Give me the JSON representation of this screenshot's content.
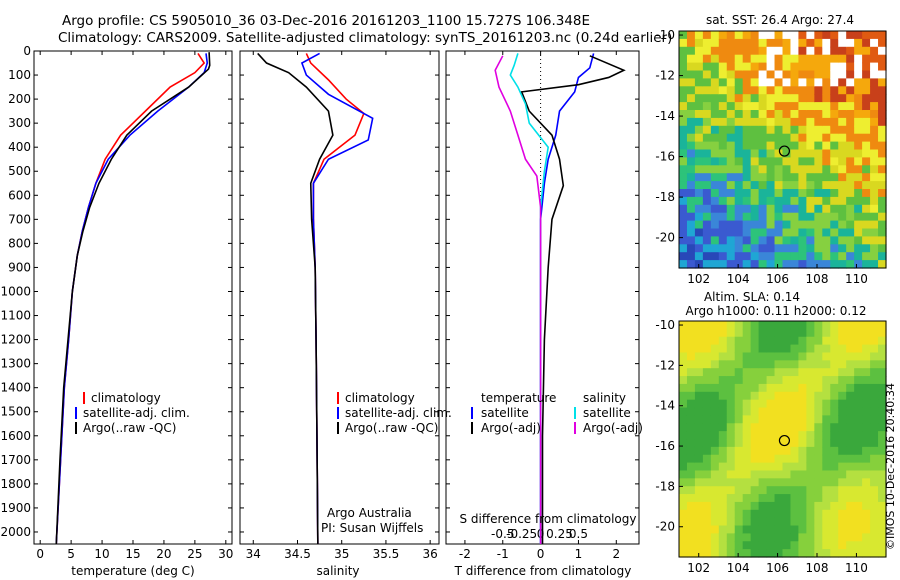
{
  "header": {
    "line1": "Argo profile: CS 5905010_36 03-Dec-2016 20161203_1100 15.727S 106.348E",
    "line2": "Climatology: CARS2009. Satellite-adjusted climatology: synTS_20161203.nc (0.24d earlier)"
  },
  "footer": {
    "credit": "©IMOS 10-Dec-2016 20:40:34"
  },
  "colors": {
    "climatology": "#ff0000",
    "satellite_adj": "#0000ff",
    "argo": "#000000",
    "salinity_satellite": "#00e0e8",
    "salinity_argo": "#e000e0"
  },
  "chart_data": [
    {
      "type": "line",
      "panel": "temperature",
      "xlabel": "temperature (deg C)",
      "ylabel": "",
      "xlim": [
        -1,
        31
      ],
      "ylim": [
        2050,
        0
      ],
      "xticks": [
        0,
        5,
        10,
        15,
        20,
        25,
        30
      ],
      "yticks": [
        0,
        100,
        200,
        300,
        400,
        500,
        600,
        700,
        800,
        900,
        1000,
        1100,
        1200,
        1300,
        1400,
        1500,
        1600,
        1700,
        1800,
        1900,
        2000
      ],
      "legend": [
        "climatology",
        "satellite-adj. clim.",
        "Argo(..raw -QC)"
      ],
      "series": [
        {
          "name": "climatology",
          "x": [
            25.5,
            26.5,
            25,
            21,
            17,
            13,
            10.5,
            9,
            7.8,
            6.8,
            6,
            5.2,
            4.6,
            3.9,
            3.3,
            2.6
          ],
          "y": [
            10,
            50,
            90,
            150,
            250,
            350,
            450,
            550,
            650,
            750,
            850,
            1000,
            1200,
            1400,
            1700,
            2050
          ]
        },
        {
          "name": "satellite-adj. clim.",
          "x": [
            26.8,
            27,
            26.5,
            24,
            19,
            14.5,
            11,
            9,
            7.8,
            6.8,
            6,
            5.2,
            4.6,
            3.9,
            3.3,
            2.6
          ],
          "y": [
            10,
            50,
            90,
            150,
            250,
            350,
            450,
            550,
            650,
            750,
            850,
            1000,
            1200,
            1400,
            1700,
            2050
          ]
        },
        {
          "name": "Argo(..raw -QC)",
          "x": [
            27.3,
            27.4,
            27.2,
            24,
            18,
            14,
            11.5,
            9.5,
            8,
            6.9,
            6,
            5.2,
            4.5,
            3.8,
            3.2,
            2.6
          ],
          "y": [
            5,
            60,
            75,
            150,
            250,
            350,
            450,
            550,
            650,
            750,
            850,
            1000,
            1200,
            1400,
            1700,
            2050
          ]
        }
      ]
    },
    {
      "type": "line",
      "panel": "salinity",
      "xlabel": "salinity",
      "xlim": [
        33.85,
        36.1
      ],
      "ylim": [
        2050,
        0
      ],
      "xticks": [
        34,
        34.5,
        35,
        35.5,
        36
      ],
      "legend": [
        "climatology",
        "satellite-adj. clim.",
        "Argo(..raw -QC)"
      ],
      "annotations": [
        "Argo Australia",
        "PI: Susan Wijffels"
      ],
      "series": [
        {
          "name": "climatology",
          "x": [
            34.6,
            34.65,
            34.85,
            35.05,
            35.25,
            35.15,
            34.8,
            34.68,
            34.68,
            34.7,
            34.71,
            34.72,
            34.73
          ],
          "y": [
            10,
            50,
            120,
            200,
            260,
            350,
            450,
            550,
            700,
            900,
            1200,
            1600,
            2050
          ]
        },
        {
          "name": "satellite-adj. clim.",
          "x": [
            34.75,
            34.55,
            34.6,
            34.85,
            35.35,
            35.3,
            34.85,
            34.68,
            34.68,
            34.7,
            34.71,
            34.72,
            34.73
          ],
          "y": [
            10,
            50,
            100,
            180,
            280,
            370,
            450,
            550,
            700,
            900,
            1200,
            1600,
            2050
          ]
        },
        {
          "name": "Argo(..raw -QC)",
          "x": [
            34.05,
            34.15,
            34.4,
            34.6,
            34.85,
            34.9,
            34.75,
            34.65,
            34.66,
            34.7,
            34.71,
            34.72,
            34.73
          ],
          "y": [
            10,
            50,
            90,
            150,
            250,
            350,
            450,
            550,
            700,
            900,
            1200,
            1600,
            2050
          ]
        }
      ]
    },
    {
      "type": "line",
      "panel": "differences",
      "xlabel": "T difference from climatology",
      "xlabel_top": "S difference from climatology",
      "xlim": [
        -2.5,
        2.6
      ],
      "ylim": [
        2050,
        0
      ],
      "xticks_T": [
        -2,
        -1,
        0,
        1,
        2
      ],
      "xticks_S": [
        "-0.5",
        "-0.25",
        "0",
        "0.25",
        "0.5"
      ],
      "legend_titles": [
        "temperature",
        "salinity"
      ],
      "legend": [
        "satellite",
        "Argo(-adj)",
        "satellite",
        "Argo(-adj)"
      ],
      "series": [
        {
          "name": "satellite",
          "x": [
            1.4,
            1.3,
            1.0,
            0.9,
            0.5,
            0.4,
            0.2,
            0.1,
            0.0,
            0.0,
            0.0
          ],
          "y": [
            10,
            70,
            110,
            170,
            250,
            350,
            450,
            550,
            700,
            1200,
            2050
          ]
        },
        {
          "name": "Argo(-adj)",
          "x": [
            1.3,
            2.2,
            1.8,
            1.0,
            -0.5,
            -0.3,
            0.3,
            0.5,
            0.6,
            0.3,
            0.2,
            0.1,
            0.05,
            0.05
          ],
          "y": [
            20,
            80,
            110,
            140,
            170,
            250,
            350,
            450,
            560,
            700,
            900,
            1200,
            1600,
            2050
          ]
        },
        {
          "name": "satellite",
          "x": [
            -0.6,
            -0.7,
            -0.8,
            -0.6,
            -0.4,
            -0.3,
            0.2,
            0.1,
            0.0,
            0.0,
            0.0
          ],
          "y": [
            10,
            60,
            100,
            150,
            220,
            300,
            400,
            500,
            650,
            1200,
            2050
          ]
        },
        {
          "name": "Argo(-adj)",
          "x": [
            -1.0,
            -1.2,
            -1.1,
            -0.8,
            -0.6,
            -0.4,
            -0.1,
            0.0,
            0.0
          ],
          "y": [
            20,
            80,
            150,
            250,
            350,
            450,
            520,
            650,
            2050
          ]
        }
      ]
    },
    {
      "type": "heatmap",
      "panel": "sst-map",
      "title": "sat. SST: 26.4 Argo: 27.4",
      "xticks": [
        102,
        104,
        106,
        108,
        110
      ],
      "yticks": [
        -10,
        -12,
        -14,
        -16,
        -18,
        -20
      ],
      "xlim": [
        101,
        111.5
      ],
      "ylim": [
        -21.5,
        -9.8
      ],
      "marker": {
        "lon": 106.348,
        "lat": -15.727
      }
    },
    {
      "type": "heatmap",
      "panel": "sla-map",
      "title": "Altim. SLA: 0.14",
      "subtitle": "Argo h1000: 0.11 h2000: 0.12",
      "xticks": [
        102,
        104,
        106,
        108,
        110
      ],
      "yticks": [
        -10,
        -12,
        -14,
        -16,
        -18,
        -20
      ],
      "xlim": [
        101,
        111.5
      ],
      "ylim": [
        -21.5,
        -9.8
      ],
      "marker": {
        "lon": 106.348,
        "lat": -15.727
      }
    }
  ]
}
